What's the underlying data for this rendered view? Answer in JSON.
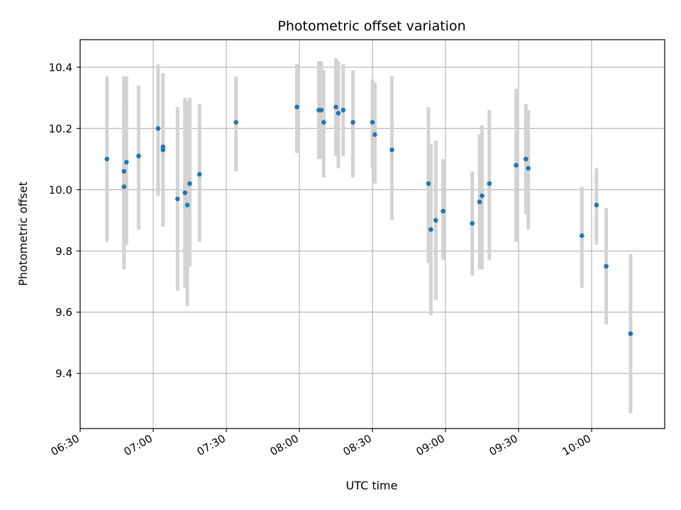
{
  "chart_data": {
    "type": "scatter",
    "title": "Photometric offset variation",
    "xlabel": "UTC time",
    "ylabel": "Photometric offset",
    "x_unit": "time",
    "xlim": [
      "06:30",
      "10:30"
    ],
    "ylim": [
      9.22,
      10.49
    ],
    "grid": true,
    "x_ticks": [
      "06:30",
      "07:00",
      "07:30",
      "08:00",
      "08:30",
      "09:00",
      "09:30",
      "10:00"
    ],
    "y_ticks": [
      "9.4",
      "9.6",
      "9.8",
      "10.0",
      "10.2",
      "10.4"
    ],
    "y_tick_values": [
      9.4,
      9.6,
      9.8,
      10.0,
      10.2,
      10.4
    ],
    "marker_color": "#1f77b4",
    "errorbar_color": "#d3d3d3",
    "points": [
      {
        "x": "06:41",
        "y": 10.1,
        "lo": 9.83,
        "hi": 10.37
      },
      {
        "x": "06:48",
        "y": 10.01,
        "lo": 9.74,
        "hi": 10.29
      },
      {
        "x": "06:48",
        "y": 10.06,
        "lo": 9.76,
        "hi": 10.37
      },
      {
        "x": "06:49",
        "y": 10.09,
        "lo": 9.82,
        "hi": 10.37
      },
      {
        "x": "06:54",
        "y": 10.11,
        "lo": 9.87,
        "hi": 10.34
      },
      {
        "x": "07:02",
        "y": 10.2,
        "lo": 9.98,
        "hi": 10.41
      },
      {
        "x": "07:04",
        "y": 10.14,
        "lo": 9.88,
        "hi": 10.38
      },
      {
        "x": "07:04",
        "y": 10.13,
        "lo": 9.88,
        "hi": 10.38
      },
      {
        "x": "07:10",
        "y": 9.97,
        "lo": 9.67,
        "hi": 10.27
      },
      {
        "x": "07:13",
        "y": 9.99,
        "lo": 9.68,
        "hi": 10.3
      },
      {
        "x": "07:14",
        "y": 9.95,
        "lo": 9.62,
        "hi": 10.29
      },
      {
        "x": "07:15",
        "y": 10.02,
        "lo": 9.75,
        "hi": 10.3
      },
      {
        "x": "07:19",
        "y": 10.05,
        "lo": 9.83,
        "hi": 10.28
      },
      {
        "x": "07:34",
        "y": 10.22,
        "lo": 10.06,
        "hi": 10.37
      },
      {
        "x": "07:59",
        "y": 10.27,
        "lo": 10.12,
        "hi": 10.41
      },
      {
        "x": "08:08",
        "y": 10.26,
        "lo": 10.1,
        "hi": 10.42
      },
      {
        "x": "08:09",
        "y": 10.26,
        "lo": 10.1,
        "hi": 10.42
      },
      {
        "x": "08:10",
        "y": 10.22,
        "lo": 10.04,
        "hi": 10.39
      },
      {
        "x": "08:15",
        "y": 10.27,
        "lo": 10.11,
        "hi": 10.43
      },
      {
        "x": "08:16",
        "y": 10.25,
        "lo": 10.07,
        "hi": 10.42
      },
      {
        "x": "08:18",
        "y": 10.26,
        "lo": 10.11,
        "hi": 10.41
      },
      {
        "x": "08:22",
        "y": 10.22,
        "lo": 10.04,
        "hi": 10.39
      },
      {
        "x": "08:30",
        "y": 10.22,
        "lo": 10.07,
        "hi": 10.36
      },
      {
        "x": "08:31",
        "y": 10.18,
        "lo": 10.02,
        "hi": 10.35
      },
      {
        "x": "08:38",
        "y": 10.13,
        "lo": 9.9,
        "hi": 10.37
      },
      {
        "x": "08:53",
        "y": 10.02,
        "lo": 9.76,
        "hi": 10.27
      },
      {
        "x": "08:54",
        "y": 9.87,
        "lo": 9.59,
        "hi": 10.15
      },
      {
        "x": "08:56",
        "y": 9.9,
        "lo": 9.64,
        "hi": 10.16
      },
      {
        "x": "08:59",
        "y": 9.93,
        "lo": 9.77,
        "hi": 10.1
      },
      {
        "x": "09:11",
        "y": 9.89,
        "lo": 9.72,
        "hi": 10.06
      },
      {
        "x": "09:14",
        "y": 9.96,
        "lo": 9.74,
        "hi": 10.18
      },
      {
        "x": "09:15",
        "y": 9.98,
        "lo": 9.74,
        "hi": 10.21
      },
      {
        "x": "09:18",
        "y": 10.02,
        "lo": 9.77,
        "hi": 10.26
      },
      {
        "x": "09:29",
        "y": 10.08,
        "lo": 9.83,
        "hi": 10.33
      },
      {
        "x": "09:33",
        "y": 10.1,
        "lo": 9.92,
        "hi": 10.28
      },
      {
        "x": "09:34",
        "y": 10.07,
        "lo": 9.87,
        "hi": 10.26
      },
      {
        "x": "09:56",
        "y": 9.85,
        "lo": 9.68,
        "hi": 10.01
      },
      {
        "x": "10:02",
        "y": 9.95,
        "lo": 9.82,
        "hi": 10.07
      },
      {
        "x": "10:06",
        "y": 9.75,
        "lo": 9.56,
        "hi": 9.94
      },
      {
        "x": "10:16",
        "y": 9.53,
        "lo": 9.27,
        "hi": 9.79
      }
    ]
  }
}
